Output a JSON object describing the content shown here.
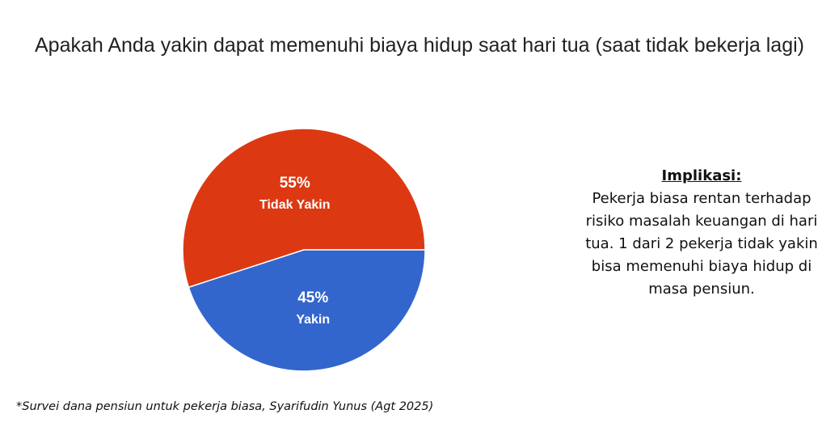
{
  "chart_data": {
    "type": "pie",
    "title": "Apakah Anda yakin dapat memenuhi biaya hidup saat hari tua (saat tidak bekerja lagi)",
    "slices": [
      {
        "label": "Tidak Yakin",
        "value": 55,
        "value_label": "55%",
        "color": "#dc3912"
      },
      {
        "label": "Yakin",
        "value": 45,
        "value_label": "45%",
        "color": "#3366cc"
      }
    ],
    "start": "3 o'clock",
    "direction": "counterclockwise",
    "legend": "none",
    "label_color": "#ffffff"
  },
  "implication": {
    "heading": "Implikasi:",
    "body": "Pekerja biasa rentan terhadap risiko masalah keuangan di hari tua. 1 dari 2 pekerja tidak yakin bisa memenuhi biaya hidup di masa pensiun."
  },
  "footnote": "*Survei dana pensiun untuk pekerja biasa, Syarifudin Yunus (Agt 2025)"
}
